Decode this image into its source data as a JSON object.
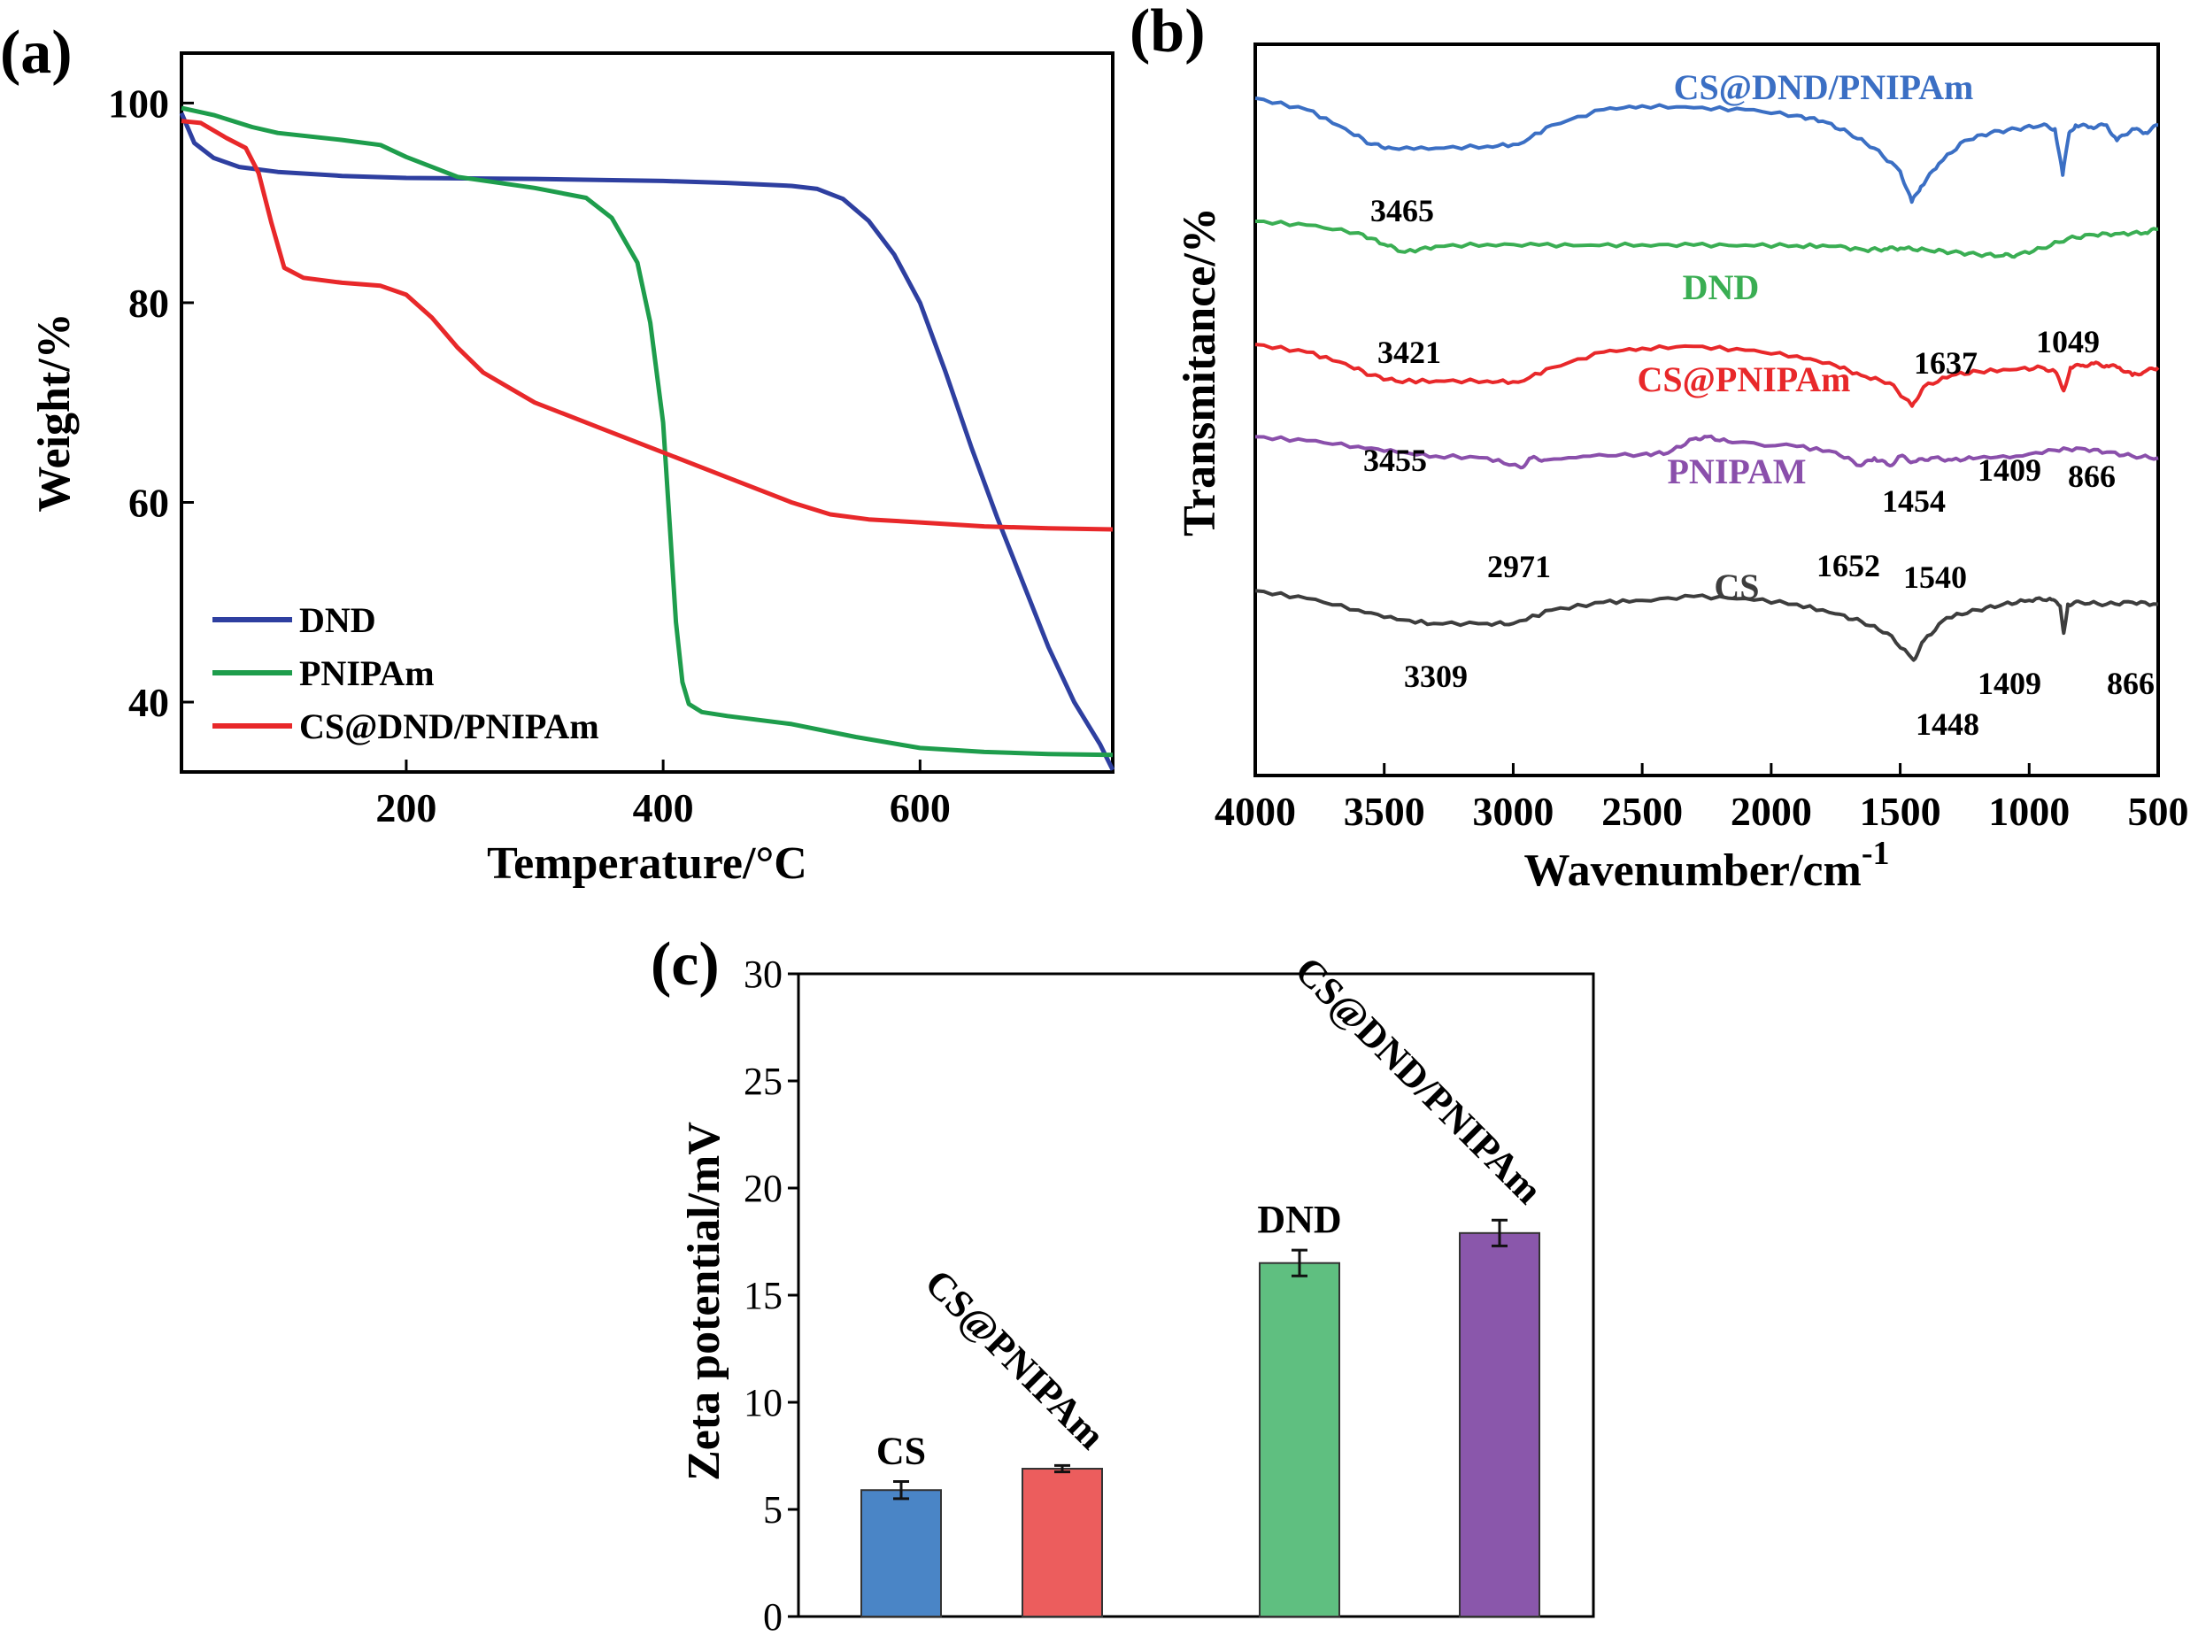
{
  "chart_data": [
    {
      "id": "a",
      "panel_label": "(a)",
      "type": "line",
      "xlabel": "Temperature/°C",
      "ylabel": "Weight/%",
      "xlim": [
        25,
        750
      ],
      "ylim": [
        33,
        105
      ],
      "xticks": [
        200,
        400,
        600
      ],
      "yticks": [
        40,
        60,
        80,
        100
      ],
      "legend_position": "bottom-left",
      "series": [
        {
          "name": "DND",
          "color": "#2e3fa0",
          "x": [
            25,
            35,
            50,
            70,
            100,
            150,
            200,
            300,
            400,
            450,
            500,
            520,
            540,
            560,
            580,
            600,
            620,
            640,
            660,
            680,
            700,
            720,
            740,
            750
          ],
          "y": [
            99,
            96,
            94.5,
            93.6,
            93.1,
            92.7,
            92.5,
            92.4,
            92.2,
            92.0,
            91.7,
            91.4,
            90.4,
            88.2,
            84.8,
            80.0,
            73.0,
            65.5,
            58.5,
            52.0,
            45.5,
            40.0,
            35.8,
            33.2
          ]
        },
        {
          "name": "PNIPAm",
          "color": "#1e9d4c",
          "x": [
            25,
            50,
            80,
            100,
            150,
            180,
            200,
            240,
            300,
            340,
            360,
            380,
            390,
            400,
            405,
            410,
            415,
            420,
            430,
            450,
            500,
            550,
            600,
            650,
            700,
            750
          ],
          "y": [
            99.5,
            98.8,
            97.6,
            97.0,
            96.3,
            95.8,
            94.6,
            92.6,
            91.5,
            90.5,
            88.5,
            84.0,
            78.0,
            68.0,
            58.0,
            48.0,
            42.0,
            39.8,
            39.0,
            38.6,
            37.8,
            36.5,
            35.4,
            35.0,
            34.8,
            34.7
          ]
        },
        {
          "name": "CS@DND/PNIPAm",
          "color": "#e8282a",
          "x": [
            25,
            40,
            60,
            75,
            85,
            95,
            105,
            120,
            150,
            180,
            200,
            220,
            240,
            260,
            280,
            300,
            350,
            400,
            450,
            500,
            530,
            560,
            600,
            650,
            700,
            750
          ],
          "y": [
            98.2,
            98.0,
            96.5,
            95.5,
            93.0,
            88.0,
            83.5,
            82.5,
            82.0,
            81.7,
            80.8,
            78.5,
            75.5,
            73.0,
            71.5,
            70.0,
            67.5,
            65.0,
            62.5,
            60.0,
            58.8,
            58.3,
            58.0,
            57.6,
            57.4,
            57.3
          ]
        }
      ]
    },
    {
      "id": "b",
      "panel_label": "(b)",
      "type": "line",
      "xlabel": "Wavenumber/cm",
      "xlabel_superscript": "-1",
      "ylabel": "Transmitance/%",
      "xlim": [
        4000,
        500
      ],
      "xticks": [
        4000,
        3500,
        3000,
        2500,
        2000,
        1500,
        1000,
        500
      ],
      "offset_units": "arbitrary",
      "series": [
        {
          "name": "CS@DND/PNIPAm",
          "color": "#3b6fc4",
          "offset": 96,
          "x": [
            4000,
            3800,
            3650,
            3550,
            3470,
            3300,
            3100,
            2980,
            2850,
            2650,
            2500,
            2300,
            2100,
            1900,
            1800,
            1700,
            1600,
            1500,
            1455,
            1420,
            1350,
            1250,
            1150,
            1050,
            950,
            900,
            870,
            845,
            820,
            760,
            700,
            660,
            600,
            550,
            500
          ],
          "y": [
            0,
            -3,
            -8,
            -12,
            -13,
            -13,
            -12.5,
            -12,
            -7,
            -3,
            -2,
            -2.5,
            -3,
            -4.5,
            -6,
            -9,
            -13,
            -19,
            -27,
            -23,
            -17,
            -11,
            -9,
            -8,
            -7,
            -8,
            -20,
            -9,
            -7,
            -7.5,
            -7,
            -11,
            -8,
            -9,
            -7
          ]
        },
        {
          "name": "DND",
          "color": "#3aae53",
          "offset": 64,
          "x": [
            4000,
            3800,
            3600,
            3500,
            3420,
            3300,
            3100,
            2900,
            2700,
            2500,
            2300,
            2100,
            1900,
            1750,
            1637,
            1560,
            1500,
            1400,
            1300,
            1200,
            1100,
            1049,
            950,
            850,
            750,
            650,
            550,
            500
          ],
          "y": [
            0,
            -1,
            -3,
            -6,
            -8,
            -6.5,
            -6,
            -6.2,
            -6.2,
            -6.1,
            -6.2,
            -6.2,
            -6.3,
            -6.5,
            -7.5,
            -7.2,
            -7.0,
            -7.4,
            -8.0,
            -8.6,
            -8.9,
            -8.8,
            -7,
            -4.5,
            -3.5,
            -3.2,
            -3.0,
            -2
          ]
        },
        {
          "name": "CS@PNIPAm",
          "color": "#e8282a",
          "offset": 32,
          "x": [
            4000,
            3800,
            3650,
            3550,
            3455,
            3300,
            3100,
            2980,
            2850,
            2650,
            2500,
            2300,
            2100,
            1900,
            1750,
            1652,
            1540,
            1454,
            1409,
            1300,
            1200,
            1050,
            950,
            900,
            866,
            840,
            800,
            750,
            700,
            650,
            600,
            550,
            500
          ],
          "y": [
            0,
            -2,
            -5,
            -8,
            -9.5,
            -9.5,
            -9.5,
            -9.8,
            -6,
            -2,
            -1,
            -0.5,
            -1.5,
            -3,
            -5.5,
            -8,
            -10,
            -16,
            -11,
            -8,
            -7,
            -6.5,
            -6,
            -7,
            -12,
            -6,
            -5.5,
            -5,
            -5.5,
            -6,
            -8,
            -7,
            -6
          ]
        },
        {
          "name": "PNIPAM",
          "color": "#8a4fab",
          "offset": 8,
          "x": [
            4000,
            3800,
            3600,
            3450,
            3300,
            3100,
            2971,
            2930,
            2870,
            2700,
            2500,
            2400,
            2300,
            2250,
            2150,
            1900,
            1750,
            1652,
            1600,
            1540,
            1500,
            1450,
            1380,
            1300,
            1200,
            1050,
            900,
            800,
            700,
            600,
            500
          ],
          "y": [
            0,
            -1,
            -2.5,
            -4,
            -5,
            -5.5,
            -8,
            -5.5,
            -6,
            -5,
            -4.5,
            -4.2,
            -0.5,
            0,
            -1.5,
            -2.5,
            -4,
            -7.5,
            -5.5,
            -7.5,
            -5,
            -6.5,
            -5.5,
            -6,
            -5.5,
            -5,
            -3.5,
            -3,
            -4,
            -5,
            -5.5
          ]
        },
        {
          "name": "CS",
          "color": "#3d3d3d",
          "offset": -32,
          "x": [
            4000,
            3800,
            3600,
            3450,
            3309,
            3100,
            3000,
            2850,
            2650,
            2500,
            2300,
            2100,
            1900,
            1750,
            1650,
            1550,
            1448,
            1409,
            1320,
            1200,
            1100,
            1000,
            920,
            880,
            866,
            850,
            800,
            700,
            600,
            500
          ],
          "y": [
            0,
            -2,
            -5,
            -7.5,
            -8.5,
            -8.5,
            -8.5,
            -5,
            -3,
            -2.5,
            -1.5,
            -2,
            -3.5,
            -6,
            -8,
            -11,
            -18,
            -13,
            -7,
            -5,
            -3.5,
            -2.5,
            -2,
            -4,
            -11,
            -3.5,
            -3,
            -3.5,
            -3,
            -3.5
          ]
        }
      ],
      "series_labels": [
        "CS@DND/PNIPAm",
        "DND",
        "CS@PNIPAm",
        "PNIPAM",
        "CS"
      ],
      "peak_annotations": [
        {
          "series": "CS@DND/PNIPAm",
          "text": "3465"
        },
        {
          "series": "DND",
          "text": "3421"
        },
        {
          "series": "DND",
          "text": "1637"
        },
        {
          "series": "DND",
          "text": "1049"
        },
        {
          "series": "CS@PNIPAm",
          "text": "3455"
        },
        {
          "series": "CS@PNIPAm",
          "text": "1454"
        },
        {
          "series": "CS@PNIPAm",
          "text": "1409"
        },
        {
          "series": "CS@PNIPAm",
          "text": "866"
        },
        {
          "series": "PNIPAM",
          "text": "2971"
        },
        {
          "series": "PNIPAM",
          "text": "1652"
        },
        {
          "series": "PNIPAM",
          "text": "1540"
        },
        {
          "series": "CS",
          "text": "3309"
        },
        {
          "series": "CS",
          "text": "1409"
        },
        {
          "series": "CS",
          "text": "866"
        },
        {
          "series": "CS",
          "text": "1448"
        }
      ]
    },
    {
      "id": "c",
      "panel_label": "(c)",
      "type": "bar",
      "ylabel": "Zeta potential/mV",
      "ylim": [
        0,
        30
      ],
      "yticks": [
        0,
        5,
        10,
        15,
        20,
        25,
        30
      ],
      "categories": [
        "CS",
        "CS@PNIPAm",
        "DND",
        "CS@DND/PNIPAm"
      ],
      "values": [
        5.9,
        6.9,
        16.5,
        17.9
      ],
      "errors": [
        0.4,
        0.15,
        0.6,
        0.6
      ],
      "colors": [
        "#4a85c6",
        "#ec5d5d",
        "#5fbf80",
        "#8a57ab"
      ],
      "label_rotation": [
        0,
        -45,
        0,
        -45
      ]
    }
  ]
}
